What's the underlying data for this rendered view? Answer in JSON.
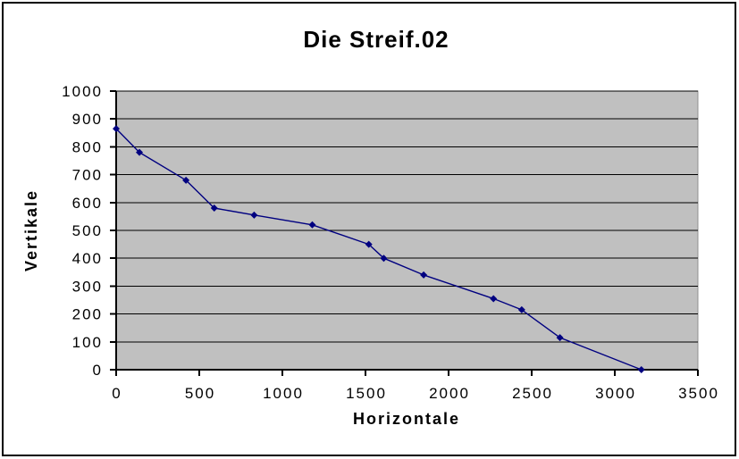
{
  "window": {
    "background": "#ffffff",
    "border_color": "#000000"
  },
  "chart_data": {
    "type": "line",
    "title": "Die Streif.02",
    "xlabel": "Horizontale",
    "ylabel": "Vertikale",
    "xlim": [
      0,
      3500
    ],
    "ylim": [
      0,
      1000
    ],
    "x_ticks": [
      0,
      500,
      1000,
      1500,
      2000,
      2500,
      3000,
      3500
    ],
    "y_ticks": [
      0,
      100,
      200,
      300,
      400,
      500,
      600,
      700,
      800,
      900,
      1000
    ],
    "grid": "horizontal",
    "legend": "none",
    "marker": "diamond",
    "series": [
      {
        "name": "Die Streif.02",
        "points": [
          [
            0,
            865
          ],
          [
            140,
            780
          ],
          [
            420,
            680
          ],
          [
            590,
            580
          ],
          [
            830,
            555
          ],
          [
            1180,
            520
          ],
          [
            1520,
            450
          ],
          [
            1610,
            400
          ],
          [
            1850,
            340
          ],
          [
            2270,
            255
          ],
          [
            2440,
            215
          ],
          [
            2670,
            115
          ],
          [
            3160,
            0
          ]
        ]
      }
    ],
    "colors": {
      "line": "#000080",
      "marker": "#000080",
      "plot_bg": "#c0c0c0",
      "plot_border": "#909090",
      "grid": "#000000",
      "axis": "#000000",
      "text": "#000000"
    }
  }
}
